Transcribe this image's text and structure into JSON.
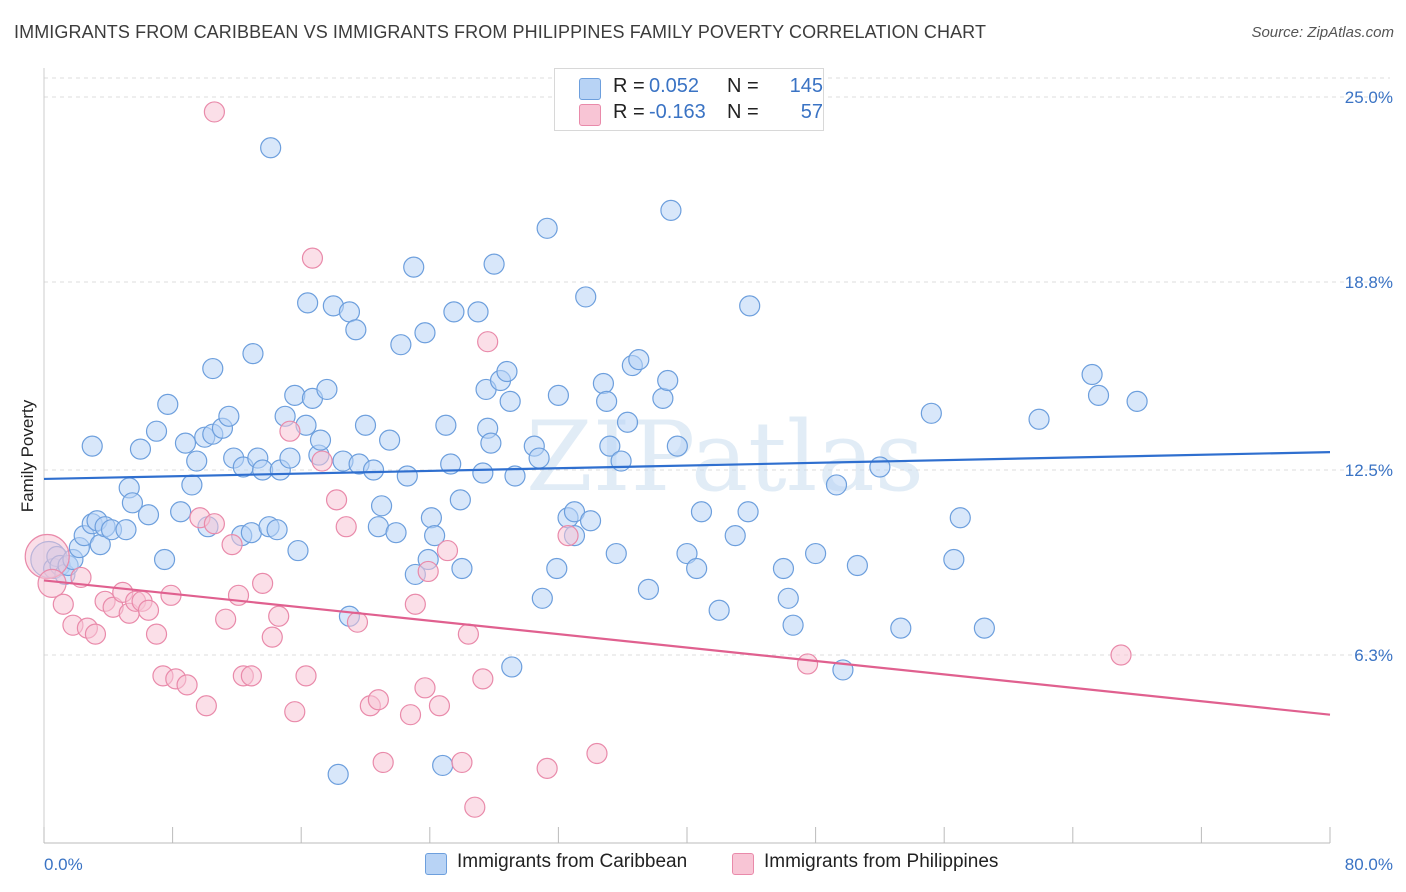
{
  "title": "IMMIGRANTS FROM CARIBBEAN VS IMMIGRANTS FROM PHILIPPINES FAMILY POVERTY CORRELATION CHART",
  "source": "Source: ZipAtlas.com",
  "watermark": "ZIPatlas",
  "colors": {
    "caribbean_fill": "#b8d3f5",
    "caribbean_stroke": "#6d9fdd",
    "caribbean_line": "#2f6fcf",
    "philippines_fill": "#f8c5d5",
    "philippines_stroke": "#e98aaa",
    "philippines_line": "#e0608f",
    "tick_text": "#3a73c4",
    "grid": "#dddddd"
  },
  "legend": {
    "rows": [
      {
        "r_label": "R =",
        "r_value": "0.052",
        "n_label": "N =",
        "n_value": "145"
      },
      {
        "r_label": "R =",
        "r_value": "-0.163",
        "n_label": "N =",
        "n_value": "57"
      }
    ]
  },
  "bottom_legend": [
    "Immigrants from Caribbean",
    "Immigrants from Philippines"
  ],
  "chart_data": {
    "type": "scatter",
    "title": "IMMIGRANTS FROM CARIBBEAN VS IMMIGRANTS FROM PHILIPPINES FAMILY POVERTY CORRELATION CHART",
    "xlabel": "",
    "ylabel": "Family Poverty",
    "xlim": [
      0,
      80
    ],
    "ylim": [
      0,
      26.5
    ],
    "x_tick_labels": [
      "0.0%",
      "80.0%"
    ],
    "y_ticks": [
      6.3,
      12.5,
      18.8,
      25.0
    ],
    "y_tick_labels": [
      "6.3%",
      "12.5%",
      "18.8%",
      "25.0%"
    ],
    "grid": "horizontal dashed",
    "legend_position": "top-center",
    "series": [
      {
        "name": "Immigrants from Caribbean",
        "R": 0.052,
        "N": 145,
        "trend": [
          [
            0,
            12.2
          ],
          [
            80,
            13.1
          ]
        ],
        "points": [
          [
            0.3,
            9.5,
            18
          ],
          [
            0.6,
            9.2,
            10
          ],
          [
            0.8,
            9.6,
            10
          ],
          [
            1,
            9.3,
            10
          ],
          [
            1.3,
            9.0,
            10
          ],
          [
            1.5,
            9.3,
            10
          ],
          [
            1.8,
            9.5,
            10
          ],
          [
            2.2,
            9.9,
            10
          ],
          [
            2.5,
            10.3,
            10
          ],
          [
            3.0,
            10.7,
            10
          ],
          [
            3.3,
            10.8,
            10
          ],
          [
            3.5,
            10.0,
            10
          ],
          [
            3.8,
            10.6,
            10
          ],
          [
            4.2,
            10.5,
            10
          ],
          [
            3.0,
            13.3,
            10
          ],
          [
            5.1,
            10.5,
            10
          ],
          [
            5.3,
            11.9,
            10
          ],
          [
            5.5,
            11.4,
            10
          ],
          [
            6.0,
            13.2,
            10
          ],
          [
            6.5,
            11.0,
            10
          ],
          [
            7.0,
            13.8,
            10
          ],
          [
            7.7,
            14.7,
            10
          ],
          [
            7.5,
            9.5,
            10
          ],
          [
            8.5,
            11.1,
            10
          ],
          [
            8.8,
            13.4,
            10
          ],
          [
            9.2,
            12.0,
            10
          ],
          [
            9.5,
            12.8,
            10
          ],
          [
            10.0,
            13.6,
            10
          ],
          [
            10.5,
            13.7,
            10
          ],
          [
            10.2,
            10.6,
            10
          ],
          [
            10.5,
            15.9,
            10
          ],
          [
            11.1,
            13.9,
            10
          ],
          [
            11.5,
            14.3,
            10
          ],
          [
            11.8,
            12.9,
            10
          ],
          [
            12.3,
            10.3,
            10
          ],
          [
            12.4,
            12.6,
            10
          ],
          [
            12.9,
            10.4,
            10
          ],
          [
            13.3,
            12.9,
            10
          ],
          [
            13.0,
            16.4,
            10
          ],
          [
            13.6,
            12.5,
            10
          ],
          [
            14.0,
            10.6,
            10
          ],
          [
            14.5,
            10.5,
            10
          ],
          [
            14.7,
            12.5,
            10
          ],
          [
            15.3,
            12.9,
            10
          ],
          [
            15.6,
            15.0,
            10
          ],
          [
            15.0,
            14.3,
            10
          ],
          [
            15.8,
            9.8,
            10
          ],
          [
            16.3,
            14.0,
            10
          ],
          [
            16.4,
            18.1,
            10
          ],
          [
            16.7,
            14.9,
            10
          ],
          [
            17.1,
            13.0,
            10
          ],
          [
            17.2,
            13.5,
            10
          ],
          [
            17.6,
            15.2,
            10
          ],
          [
            14.1,
            23.3,
            10
          ],
          [
            18.0,
            18.0,
            10
          ],
          [
            18.6,
            12.8,
            10
          ],
          [
            19.0,
            7.6,
            10
          ],
          [
            19.0,
            17.8,
            10
          ],
          [
            19.4,
            17.2,
            10
          ],
          [
            19.6,
            12.7,
            10
          ],
          [
            20.0,
            14.0,
            10
          ],
          [
            20.5,
            12.5,
            10
          ],
          [
            20.8,
            10.6,
            10
          ],
          [
            21.0,
            11.3,
            10
          ],
          [
            21.5,
            13.5,
            10
          ],
          [
            21.9,
            10.4,
            10
          ],
          [
            22.2,
            16.7,
            10
          ],
          [
            22.6,
            12.3,
            10
          ],
          [
            23.0,
            19.3,
            10
          ],
          [
            23.1,
            9.0,
            10
          ],
          [
            23.7,
            17.1,
            10
          ],
          [
            23.9,
            9.5,
            10
          ],
          [
            24.1,
            10.9,
            10
          ],
          [
            24.3,
            10.3,
            10
          ],
          [
            25.0,
            14.0,
            10
          ],
          [
            25.3,
            12.7,
            10
          ],
          [
            25.5,
            17.8,
            10
          ],
          [
            25.9,
            11.5,
            10
          ],
          [
            26.0,
            9.2,
            10
          ],
          [
            27.0,
            17.8,
            10
          ],
          [
            27.3,
            12.4,
            10
          ],
          [
            27.5,
            15.2,
            10
          ],
          [
            27.6,
            13.9,
            10
          ],
          [
            27.8,
            13.4,
            10
          ],
          [
            28.0,
            19.4,
            10
          ],
          [
            28.4,
            15.5,
            10
          ],
          [
            28.8,
            15.8,
            10
          ],
          [
            29.0,
            14.8,
            10
          ],
          [
            29.3,
            12.3,
            10
          ],
          [
            29.1,
            5.9,
            10
          ],
          [
            30.5,
            13.3,
            10
          ],
          [
            30.8,
            12.9,
            10
          ],
          [
            31.0,
            8.2,
            10
          ],
          [
            31.3,
            20.6,
            10
          ],
          [
            31.9,
            9.2,
            10
          ],
          [
            32.0,
            15.0,
            10
          ],
          [
            32.6,
            10.9,
            10
          ],
          [
            33.0,
            11.1,
            10
          ],
          [
            33.0,
            10.3,
            10
          ],
          [
            33.7,
            18.3,
            10
          ],
          [
            34.0,
            10.8,
            10
          ],
          [
            34.8,
            15.4,
            10
          ],
          [
            35.0,
            14.8,
            10
          ],
          [
            35.2,
            13.3,
            10
          ],
          [
            35.6,
            9.7,
            10
          ],
          [
            35.9,
            12.8,
            10
          ],
          [
            36.3,
            14.1,
            10
          ],
          [
            36.6,
            16.0,
            10
          ],
          [
            37.0,
            16.2,
            10
          ],
          [
            37.6,
            8.5,
            10
          ],
          [
            38.5,
            14.9,
            10
          ],
          [
            38.8,
            15.5,
            10
          ],
          [
            39.0,
            21.2,
            10
          ],
          [
            39.4,
            13.3,
            10
          ],
          [
            40.0,
            9.7,
            10
          ],
          [
            40.6,
            9.2,
            10
          ],
          [
            40.9,
            11.1,
            10
          ],
          [
            42.0,
            7.8,
            10
          ],
          [
            43.0,
            10.3,
            10
          ],
          [
            43.8,
            11.1,
            10
          ],
          [
            43.9,
            18.0,
            10
          ],
          [
            46.0,
            9.2,
            10
          ],
          [
            46.3,
            8.2,
            10
          ],
          [
            46.6,
            7.3,
            10
          ],
          [
            48.0,
            9.7,
            10
          ],
          [
            49.3,
            12.0,
            10
          ],
          [
            49.7,
            5.8,
            10
          ],
          [
            50.6,
            9.3,
            10
          ],
          [
            52.0,
            12.6,
            10
          ],
          [
            53.3,
            7.2,
            10
          ],
          [
            55.2,
            14.4,
            10
          ],
          [
            56.6,
            9.5,
            10
          ],
          [
            57.0,
            10.9,
            10
          ],
          [
            58.5,
            7.2,
            10
          ],
          [
            61.9,
            14.2,
            10
          ],
          [
            65.2,
            15.7,
            10
          ],
          [
            65.6,
            15.0,
            10
          ],
          [
            68.0,
            14.8,
            10
          ],
          [
            18.3,
            2.3,
            10
          ],
          [
            24.8,
            2.6,
            10
          ]
        ]
      },
      {
        "name": "Immigrants from Philippines",
        "R": -0.163,
        "N": 57,
        "trend": [
          [
            0,
            8.8
          ],
          [
            80,
            4.3
          ]
        ],
        "points": [
          [
            0.2,
            9.6,
            22
          ],
          [
            0.5,
            8.7,
            14
          ],
          [
            1.2,
            8.0,
            10
          ],
          [
            1.8,
            7.3,
            10
          ],
          [
            2.3,
            8.9,
            10
          ],
          [
            2.7,
            7.2,
            10
          ],
          [
            3.2,
            7.0,
            10
          ],
          [
            3.8,
            8.1,
            10
          ],
          [
            4.3,
            7.9,
            10
          ],
          [
            4.9,
            8.4,
            10
          ],
          [
            5.3,
            7.7,
            10
          ],
          [
            5.7,
            8.1,
            10
          ],
          [
            6.1,
            8.1,
            10
          ],
          [
            6.5,
            7.8,
            10
          ],
          [
            7.0,
            7.0,
            10
          ],
          [
            7.4,
            5.6,
            10
          ],
          [
            7.9,
            8.3,
            10
          ],
          [
            8.2,
            5.5,
            10
          ],
          [
            8.9,
            5.3,
            10
          ],
          [
            9.7,
            10.9,
            10
          ],
          [
            10.1,
            4.6,
            10
          ],
          [
            10.6,
            10.7,
            10
          ],
          [
            11.3,
            7.5,
            10
          ],
          [
            11.7,
            10.0,
            10
          ],
          [
            12.1,
            8.3,
            10
          ],
          [
            12.4,
            5.6,
            10
          ],
          [
            12.9,
            5.6,
            10
          ],
          [
            13.6,
            8.7,
            10
          ],
          [
            14.2,
            6.9,
            10
          ],
          [
            14.6,
            7.6,
            10
          ],
          [
            15.3,
            13.8,
            10
          ],
          [
            15.6,
            4.4,
            10
          ],
          [
            16.3,
            5.6,
            10
          ],
          [
            16.7,
            19.6,
            10
          ],
          [
            17.3,
            12.8,
            10
          ],
          [
            18.2,
            11.5,
            10
          ],
          [
            18.8,
            10.6,
            10
          ],
          [
            19.5,
            7.4,
            10
          ],
          [
            20.3,
            4.6,
            10
          ],
          [
            20.8,
            4.8,
            10
          ],
          [
            21.1,
            2.7,
            10
          ],
          [
            22.8,
            4.3,
            10
          ],
          [
            23.1,
            8.0,
            10
          ],
          [
            23.7,
            5.2,
            10
          ],
          [
            23.9,
            9.1,
            10
          ],
          [
            24.6,
            4.6,
            10
          ],
          [
            25.1,
            9.8,
            10
          ],
          [
            26.0,
            2.7,
            10
          ],
          [
            26.4,
            7.0,
            10
          ],
          [
            26.8,
            1.2,
            10
          ],
          [
            27.3,
            5.5,
            10
          ],
          [
            27.6,
            16.8,
            10
          ],
          [
            31.3,
            2.5,
            10
          ],
          [
            32.6,
            10.3,
            10
          ],
          [
            34.4,
            3.0,
            10
          ],
          [
            47.5,
            6.0,
            10
          ],
          [
            67.0,
            6.3,
            10
          ],
          [
            10.6,
            24.5,
            10
          ]
        ]
      }
    ]
  }
}
